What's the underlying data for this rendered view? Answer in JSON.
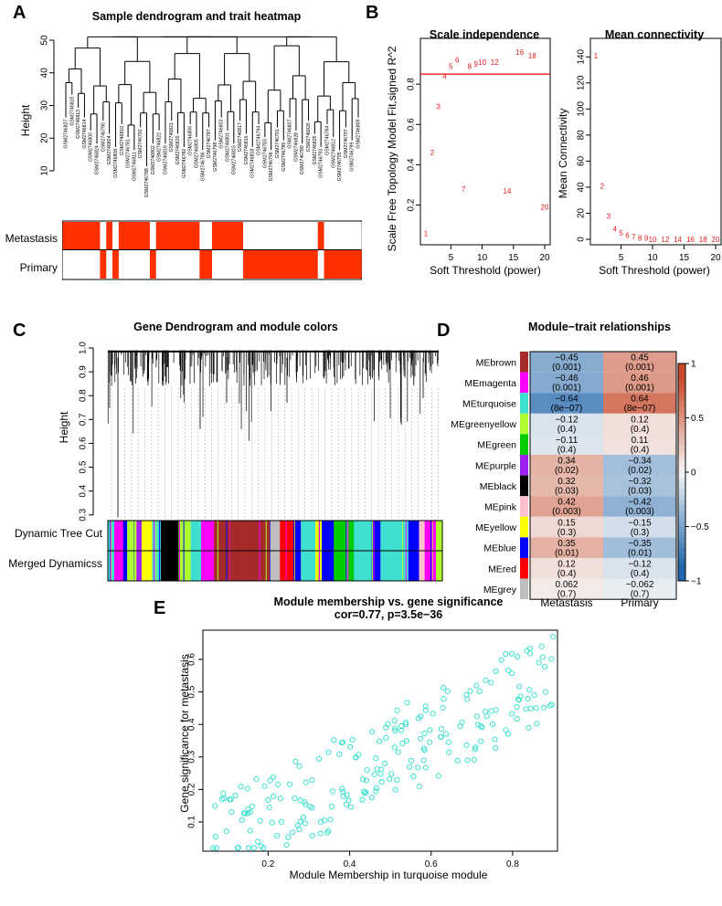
{
  "panels": {
    "a": "A",
    "b": "B",
    "c": "C",
    "d": "D",
    "e": "E"
  },
  "chart_data": [
    {
      "id": "A",
      "type": "dendrogram+heatmap",
      "title": "Sample dendrogram and trait heatmap",
      "ylabel": "Height",
      "yticks": [
        "10",
        "20",
        "30",
        "40",
        "50"
      ],
      "ylim": [
        10,
        52
      ],
      "leaves": [
        "GSM2746827",
        "GSM2746815",
        "GSM2746813",
        "GSM2746814",
        "GSM2746800",
        "GSM2746824",
        "GSM2746790",
        "GSM2746804",
        "GSM2746808",
        "GSM2746810",
        "GSM2746781",
        "GSM2746811",
        "GSM2746792",
        "GSM2746788",
        "GSM2746802",
        "GSM2746822",
        "GSM2746819",
        "GSM2746821",
        "GSM2746820",
        "GSM2746782",
        "GSM2746806",
        "GSM2746805",
        "GSM2746786",
        "GSM2746787",
        "GSM2746798",
        "GSM2746803",
        "GSM2746801",
        "GSM2746823",
        "GSM2746817",
        "GSM2746816",
        "GSM2746818",
        "GSM2746794",
        "GSM2746783",
        "GSM2746796",
        "GSM2746791",
        "GSM2746785",
        "GSM2746807",
        "GSM2746828",
        "GSM2746789",
        "GSM2746826",
        "GSM2746825",
        "GSM2746793",
        "GSM2746784",
        "GSM2746812",
        "GSM2746795",
        "GSM2746797",
        "GSM2746799",
        "GSM2746809"
      ],
      "trait_rows": [
        "Metastasis",
        "Primary"
      ],
      "metastasis_flags": [
        1,
        1,
        1,
        1,
        1,
        1,
        0,
        1,
        0,
        1,
        1,
        1,
        1,
        1,
        0,
        1,
        1,
        1,
        1,
        1,
        1,
        1,
        0,
        0,
        1,
        1,
        1,
        1,
        1,
        0,
        0,
        0,
        0,
        0,
        0,
        0,
        0,
        0,
        0,
        0,
        0,
        1,
        0,
        0,
        0,
        0,
        0,
        0
      ]
    },
    {
      "id": "B1",
      "type": "scatter-text",
      "title": "Scale independence",
      "xlabel": "Soft Threshold (power)",
      "ylabel": "Scale Free Topology Model Fit,signed R^2",
      "xlim": [
        1,
        20
      ],
      "ylim": [
        0.03,
        1.0
      ],
      "xticks": [
        "5",
        "10",
        "15",
        "20"
      ],
      "yticks": [
        "0.2",
        "0.4",
        "0.6",
        "0.8"
      ],
      "cutoff": 0.85,
      "powers": [
        1,
        2,
        3,
        4,
        5,
        6,
        7,
        8,
        9,
        10,
        12,
        14,
        16,
        18,
        20
      ],
      "values": [
        0.06,
        0.46,
        0.69,
        0.84,
        0.89,
        0.92,
        0.28,
        0.89,
        0.9,
        0.91,
        0.91,
        0.27,
        0.96,
        0.94,
        0.19
      ]
    },
    {
      "id": "B2",
      "type": "scatter-text",
      "title": "Mean connectivity",
      "xlabel": "Soft Threshold (power)",
      "ylabel": "Mean Connectivity",
      "xlim": [
        1,
        20
      ],
      "ylim": [
        0,
        150
      ],
      "xticks": [
        "5",
        "10",
        "15",
        "20"
      ],
      "yticks": [
        "0",
        "20",
        "40",
        "60",
        "80",
        "100",
        "120",
        "140"
      ],
      "powers": [
        1,
        2,
        3,
        4,
        5,
        6,
        7,
        8,
        9,
        10,
        12,
        14,
        16,
        18,
        20
      ],
      "values": [
        141,
        41,
        18,
        8,
        5,
        3,
        2,
        1,
        1,
        0,
        0,
        0,
        0,
        0,
        0
      ]
    },
    {
      "id": "C",
      "type": "dendrogram+colorbars",
      "title": "Gene Dendrogram and module colors",
      "ylabel": "Height",
      "yticks": [
        "0.3",
        "0.4",
        "0.5",
        "0.6",
        "0.7",
        "0.8",
        "0.9",
        "1.0"
      ],
      "ylim": [
        0.28,
        1.0
      ],
      "rows": [
        "Dynamic Tree Cut",
        "Merged Dynamicss"
      ]
    },
    {
      "id": "D",
      "type": "heatmap",
      "title": "Module−trait relationships",
      "columns": [
        "Metastasis",
        "Primary"
      ],
      "modules": [
        "MEbrown",
        "MEmagenta",
        "MEturquoise",
        "MEgreenyellow",
        "MEgreen",
        "MEpurple",
        "MEblack",
        "MEpink",
        "MEyellow",
        "MEblue",
        "MEred",
        "MEgrey"
      ],
      "module_colors": [
        "#A52A2A",
        "#FF00FF",
        "#40E0D0",
        "#ADFF2F",
        "#00CC00",
        "#A020F0",
        "#000000",
        "#FFC0CB",
        "#FFFF00",
        "#0000FF",
        "#FF0000",
        "#BEBEBE"
      ],
      "correlations": [
        [
          -0.45,
          0.45
        ],
        [
          -0.46,
          0.46
        ],
        [
          -0.64,
          0.64
        ],
        [
          -0.12,
          0.12
        ],
        [
          -0.11,
          0.11
        ],
        [
          0.34,
          -0.34
        ],
        [
          0.32,
          -0.32
        ],
        [
          0.42,
          -0.42
        ],
        [
          0.15,
          -0.15
        ],
        [
          0.35,
          -0.35
        ],
        [
          0.12,
          -0.12
        ],
        [
          0.062,
          -0.062
        ]
      ],
      "cor_labels": [
        [
          "−0.45",
          "0.45"
        ],
        [
          "−0.46",
          "0.46"
        ],
        [
          "−0.64",
          "0.64"
        ],
        [
          "−0.12",
          "0.12"
        ],
        [
          "−0.11",
          "0.11"
        ],
        [
          "0.34",
          "−0.34"
        ],
        [
          "0.32",
          "−0.32"
        ],
        [
          "0.42",
          "−0.42"
        ],
        [
          "0.15",
          "−0.15"
        ],
        [
          "0.35",
          "−0.35"
        ],
        [
          "0.12",
          "−0.12"
        ],
        [
          "0.062",
          "−0.062"
        ]
      ],
      "pvalues": [
        [
          "(0.001)",
          "(0.001)"
        ],
        [
          "(0.001)",
          "(0.001)"
        ],
        [
          "(8e−07)",
          "(8e−07)"
        ],
        [
          "(0.4)",
          "(0.4)"
        ],
        [
          "(0.4)",
          "(0.4)"
        ],
        [
          "(0.02)",
          "(0.02)"
        ],
        [
          "(0.03)",
          "(0.03)"
        ],
        [
          "(0.003)",
          "(0.003)"
        ],
        [
          "(0.3)",
          "(0.3)"
        ],
        [
          "(0.01)",
          "(0.01)"
        ],
        [
          "(0.4)",
          "(0.4)"
        ],
        [
          "(0.7)",
          "(0.7)"
        ]
      ],
      "legend_ticks": [
        "1",
        "0.5",
        "0",
        "−0.5",
        "−1"
      ],
      "legend_range": [
        -1,
        1
      ]
    },
    {
      "id": "E",
      "type": "scatter",
      "title": "Module membership vs. gene significance",
      "subtitle": "cor=0.77, p=3.5e−36",
      "xlabel": "Module Membership in turquoise module",
      "ylabel": "Gene significance for metastasis",
      "xlim": [
        0.04,
        0.91
      ],
      "ylim": [
        0.01,
        0.69
      ],
      "xticks": [
        "0.2",
        "0.4",
        "0.6",
        "0.8"
      ],
      "yticks": [
        "0.1",
        "0.2",
        "0.3",
        "0.4",
        "0.5",
        "0.6"
      ],
      "point_color": "#40E0D0",
      "n_points": 220
    }
  ]
}
